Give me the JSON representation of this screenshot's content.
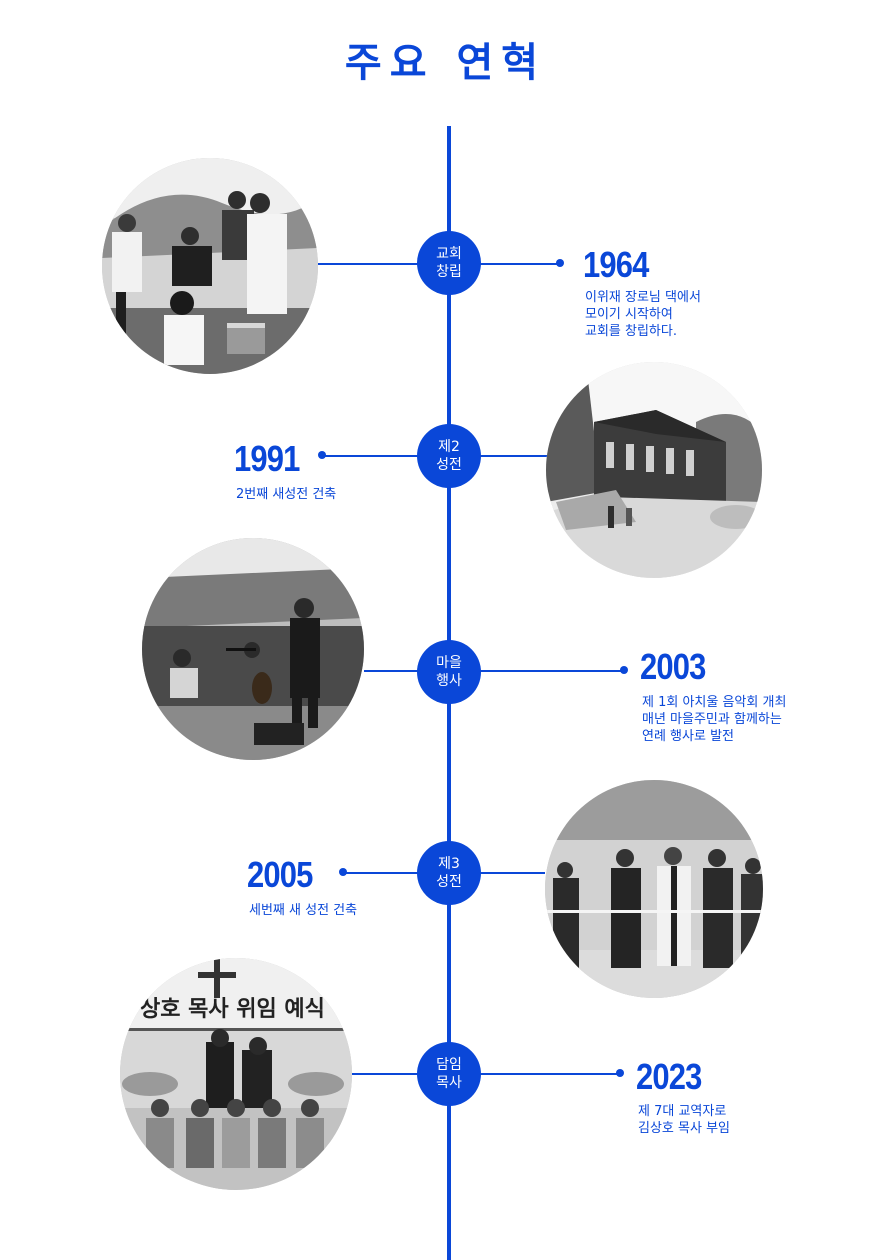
{
  "page": {
    "title": "주요 연혁"
  },
  "timeline": [
    {
      "node_line1": "교회",
      "node_line2": "창립",
      "year": "1964",
      "desc": [
        "이위재 장로님 댁에서",
        "모이기 시작하여",
        "교회를 창립하다."
      ],
      "photo": "photo-outdoor-gathering"
    },
    {
      "node_line1": "제2",
      "node_line2": "성전",
      "year": "1991",
      "desc": [
        "2번째 새성전 건축"
      ],
      "photo": "photo-brick-church"
    },
    {
      "node_line1": "마을",
      "node_line2": "행사",
      "year": "2003",
      "desc": [
        "제 1회 아치울 음악회 개최",
        "매년 마을주민과 함께하는",
        "연례 행사로 발전"
      ],
      "photo": "photo-outdoor-concert"
    },
    {
      "node_line1": "제3",
      "node_line2": "성전",
      "year": "2005",
      "desc": [
        "세번째 새 성전 건축"
      ],
      "photo": "photo-ribbon-cutting"
    },
    {
      "node_line1": "담임",
      "node_line2": "목사",
      "year": "2023",
      "desc": [
        "제 7대 교역자로",
        "김상호 목사 부임"
      ],
      "photo": "photo-installation-service",
      "banner_text": "상호 목사 위임 예식"
    }
  ],
  "colors": {
    "accent": "#0a47d8",
    "background": "#ffffff"
  }
}
